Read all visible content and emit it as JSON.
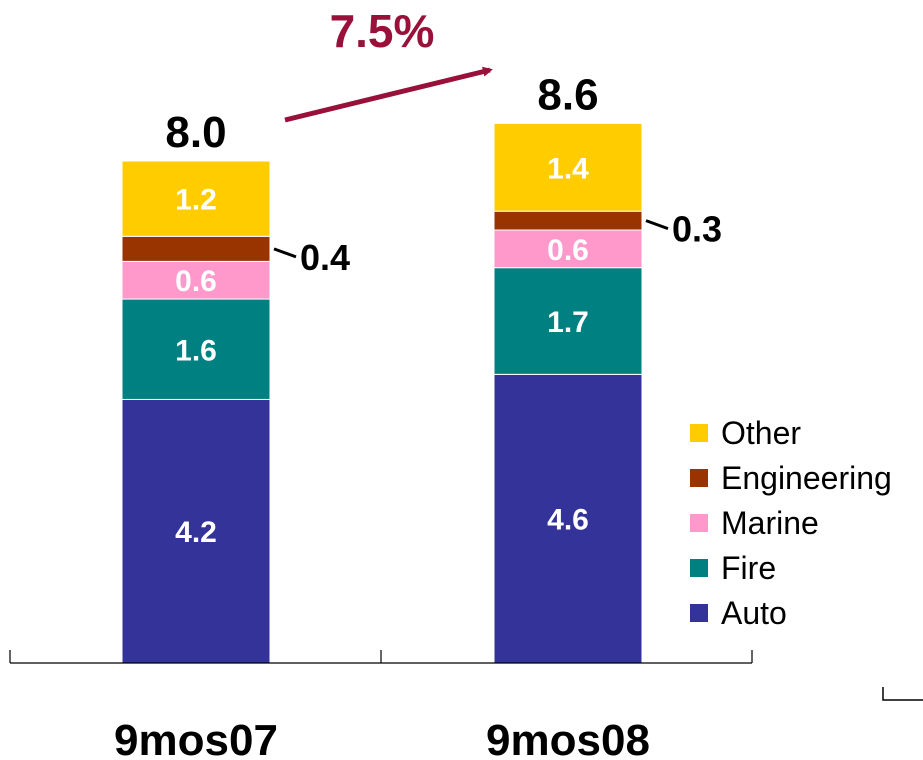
{
  "chart_data": {
    "type": "bar",
    "stacked": true,
    "categories": [
      "9mos07",
      "9mos08"
    ],
    "series": [
      {
        "name": "Auto",
        "values": [
          4.2,
          4.6
        ],
        "color": "#333399",
        "value_labels": [
          "4.2",
          "4.6"
        ]
      },
      {
        "name": "Fire",
        "values": [
          1.6,
          1.7
        ],
        "color": "#008080",
        "value_labels": [
          "1.6",
          "1.7"
        ]
      },
      {
        "name": "Marine",
        "values": [
          0.6,
          0.6
        ],
        "color": "#ff99cc",
        "value_labels": [
          "0.6",
          "0.6"
        ]
      },
      {
        "name": "Engineering",
        "values": [
          0.4,
          0.3
        ],
        "color": "#993300",
        "value_labels": [
          "0.4",
          "0.3"
        ]
      },
      {
        "name": "Other",
        "values": [
          1.2,
          1.4
        ],
        "color": "#ffcc00",
        "value_labels": [
          "1.2",
          "1.4"
        ]
      }
    ],
    "totals": [
      "8.0",
      "8.6"
    ],
    "growth_annotation": "7.5%",
    "growth_color": "#99113a",
    "legend_order": [
      "Other",
      "Engineering",
      "Marine",
      "Fire",
      "Auto"
    ],
    "legend_position": "right",
    "ylim": [
      0,
      10
    ],
    "grid": false,
    "title": "",
    "xlabel": "",
    "ylabel": ""
  }
}
